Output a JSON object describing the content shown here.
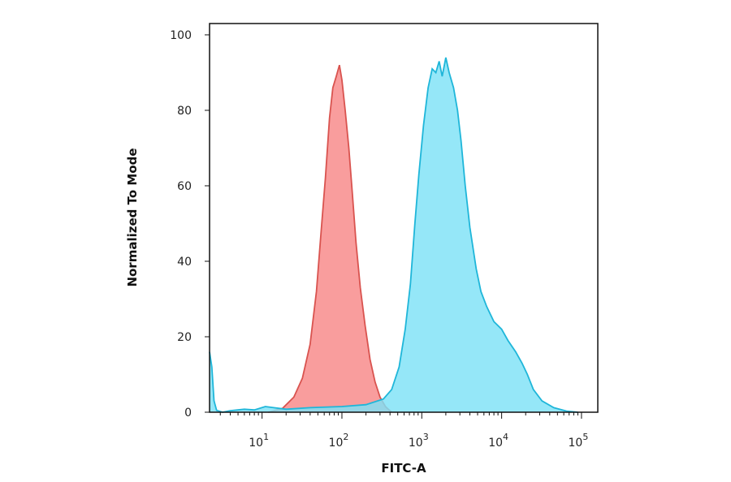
{
  "chart_data": {
    "type": "area",
    "title": "",
    "xlabel": "FITC-A",
    "ylabel": "Normalized To Mode",
    "xscale": "log",
    "xlim": [
      2.2,
      160000
    ],
    "ylim": [
      0,
      103
    ],
    "grid": false,
    "legend": "none",
    "y_ticks": [
      {
        "value": 0,
        "label": "0"
      },
      {
        "value": 20,
        "label": "20"
      },
      {
        "value": 40,
        "label": "40"
      },
      {
        "value": 60,
        "label": "60"
      },
      {
        "value": 80,
        "label": "80"
      },
      {
        "value": 100,
        "label": "100"
      }
    ],
    "x_ticks": [
      {
        "value": 10,
        "base": "10",
        "exp": "1"
      },
      {
        "value": 100,
        "base": "10",
        "exp": "2"
      },
      {
        "value": 1000,
        "base": "10",
        "exp": "3"
      },
      {
        "value": 10000,
        "base": "10",
        "exp": "4"
      },
      {
        "value": 100000,
        "base": "10",
        "exp": "5"
      }
    ],
    "series": [
      {
        "color": "#f47c7c",
        "fill": "#f88787",
        "stroke": "#d9534f",
        "points": [
          [
            12,
            0
          ],
          [
            18,
            1
          ],
          [
            25,
            4
          ],
          [
            32,
            9
          ],
          [
            40,
            18
          ],
          [
            48,
            32
          ],
          [
            55,
            48
          ],
          [
            62,
            62
          ],
          [
            70,
            78
          ],
          [
            77,
            86
          ],
          [
            85,
            89
          ],
          [
            93,
            92
          ],
          [
            100,
            88
          ],
          [
            110,
            80
          ],
          [
            122,
            70
          ],
          [
            135,
            58
          ],
          [
            150,
            45
          ],
          [
            170,
            33
          ],
          [
            195,
            23
          ],
          [
            225,
            14
          ],
          [
            260,
            8
          ],
          [
            300,
            4
          ],
          [
            350,
            1.5
          ],
          [
            420,
            0
          ]
        ]
      },
      {
        "color": "#2ec7e8",
        "fill": "#7ee2f7",
        "stroke": "#1fb6d9",
        "points": [
          [
            2.2,
            16
          ],
          [
            2.35,
            12
          ],
          [
            2.5,
            3
          ],
          [
            2.7,
            0.5
          ],
          [
            3.2,
            0
          ],
          [
            4,
            0.4
          ],
          [
            6,
            0.8
          ],
          [
            8,
            0.6
          ],
          [
            11,
            1.5
          ],
          [
            14,
            1.2
          ],
          [
            20,
            0.8
          ],
          [
            40,
            1.2
          ],
          [
            100,
            1.5
          ],
          [
            200,
            2
          ],
          [
            330,
            3.5
          ],
          [
            420,
            6
          ],
          [
            520,
            12
          ],
          [
            620,
            22
          ],
          [
            720,
            34
          ],
          [
            820,
            50
          ],
          [
            920,
            63
          ],
          [
            1050,
            76
          ],
          [
            1200,
            86
          ],
          [
            1350,
            91
          ],
          [
            1500,
            90
          ],
          [
            1650,
            93
          ],
          [
            1800,
            89
          ],
          [
            2000,
            94
          ],
          [
            2200,
            90
          ],
          [
            2500,
            86
          ],
          [
            2800,
            80
          ],
          [
            3100,
            72
          ],
          [
            3500,
            60
          ],
          [
            4000,
            49
          ],
          [
            4800,
            38
          ],
          [
            5500,
            32
          ],
          [
            6500,
            28
          ],
          [
            8000,
            24
          ],
          [
            10000,
            22
          ],
          [
            12000,
            19
          ],
          [
            15000,
            16
          ],
          [
            18000,
            13
          ],
          [
            21000,
            10
          ],
          [
            25000,
            6
          ],
          [
            32000,
            3
          ],
          [
            45000,
            1.2
          ],
          [
            65000,
            0.3
          ],
          [
            90000,
            0
          ]
        ]
      }
    ]
  }
}
